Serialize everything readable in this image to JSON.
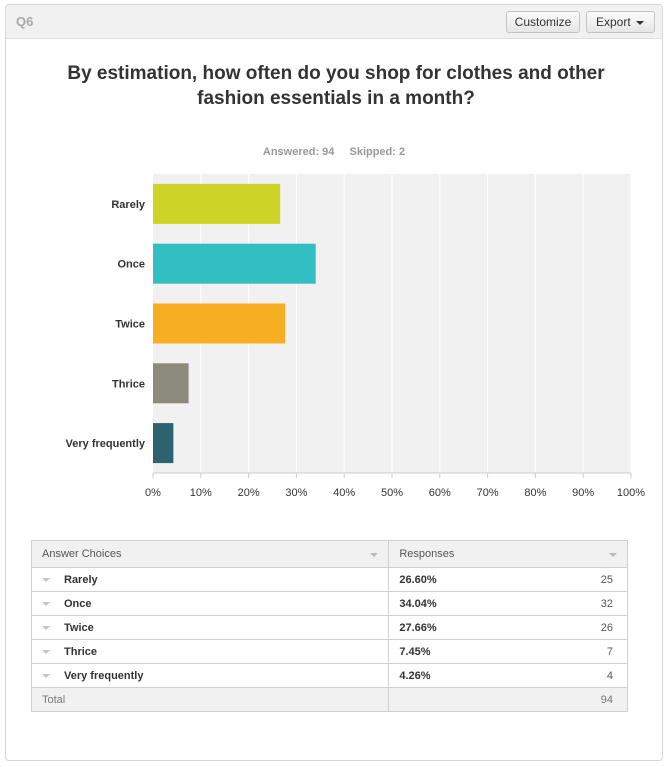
{
  "question": {
    "label": "Q6",
    "title": "By estimation, how often do you shop for clothes and other fashion essentials in a month?",
    "answered": "Answered: 94",
    "skipped": "Skipped: 2"
  },
  "toolbar": {
    "customize_label": "Customize",
    "export_label": "Export"
  },
  "colors": {
    "rarely": "#cdd425",
    "once": "#32bfc1",
    "twice": "#f7ae23",
    "thrice": "#8b8a7b",
    "very_frequently": "#2d6270",
    "plot_bg": "#f1f1f1"
  },
  "chart_data": {
    "type": "bar",
    "orientation": "horizontal",
    "categories": [
      "Rarely",
      "Once",
      "Twice",
      "Thrice",
      "Very frequently"
    ],
    "values": [
      26.6,
      34.04,
      27.66,
      7.45,
      4.26
    ],
    "xlim": [
      0,
      100
    ],
    "xticks": [
      "0%",
      "10%",
      "20%",
      "30%",
      "40%",
      "50%",
      "60%",
      "70%",
      "80%",
      "90%",
      "100%"
    ],
    "grid": true
  },
  "table": {
    "headers": [
      "Answer Choices",
      "Responses"
    ],
    "rows": [
      {
        "choice": "Rarely",
        "percent": "26.60%",
        "count": "25"
      },
      {
        "choice": "Once",
        "percent": "34.04%",
        "count": "32"
      },
      {
        "choice": "Twice",
        "percent": "27.66%",
        "count": "26"
      },
      {
        "choice": "Thrice",
        "percent": "7.45%",
        "count": "7"
      },
      {
        "choice": "Very frequently",
        "percent": "4.26%",
        "count": "4"
      }
    ],
    "total_label": "Total",
    "total_value": "94"
  }
}
